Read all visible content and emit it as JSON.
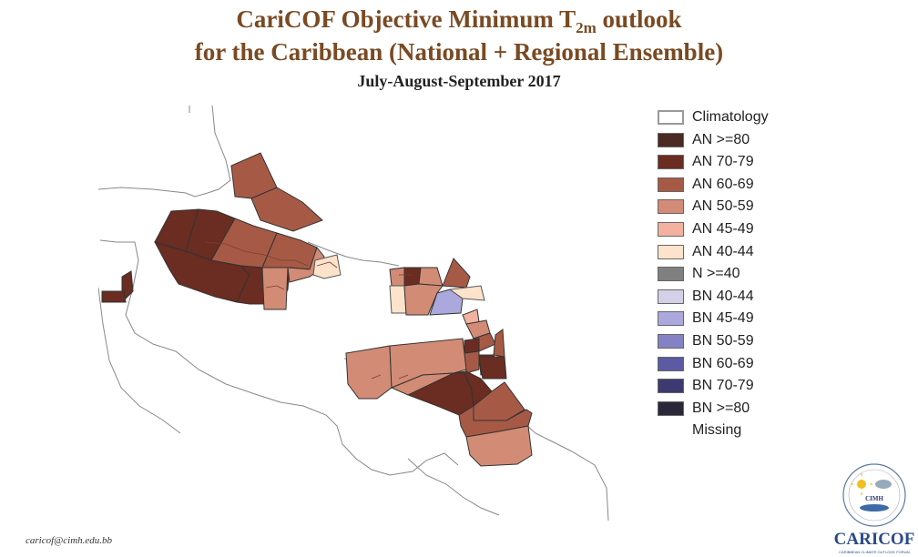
{
  "title": {
    "line1_prefix": "CariCOF Objective Minimum T",
    "line1_sub": "2m",
    "line1_suffix": " outlook",
    "line2": "for the Caribbean (National + Regional Ensemble)",
    "line3": "July-August-September 2017"
  },
  "legend": {
    "items": [
      {
        "label": "Climatology",
        "color": "#ffffff"
      },
      {
        "label": "AN  >=80",
        "color": "#4a2a22"
      },
      {
        "label": "AN 70-79",
        "color": "#6b2c22"
      },
      {
        "label": "AN 60-69",
        "color": "#a65a45"
      },
      {
        "label": "AN 50-59",
        "color": "#d28b75"
      },
      {
        "label": "AN 45-49",
        "color": "#f3b2a0"
      },
      {
        "label": "AN 40-44",
        "color": "#fde3cb"
      },
      {
        "label": "N >=40",
        "color": "#808080"
      },
      {
        "label": "BN 40-44",
        "color": "#d4d0e8"
      },
      {
        "label": "BN 45-49",
        "color": "#aaa8dc"
      },
      {
        "label": "BN 50-59",
        "color": "#8482c4"
      },
      {
        "label": "BN 60-69",
        "color": "#5c5aa2"
      },
      {
        "label": "BN 70-79",
        "color": "#3c3a70"
      },
      {
        "label": "BN  >=80",
        "color": "#2a2838"
      },
      {
        "label": "Missing",
        "color": ""
      }
    ]
  },
  "footer": {
    "email": "caricof@cimh.edu.bb"
  },
  "logo": {
    "badge": "CIMH",
    "name": "CARICOF",
    "tagline": "CARIBBEAN CLIMATE OUTLOOK FORUM"
  }
}
